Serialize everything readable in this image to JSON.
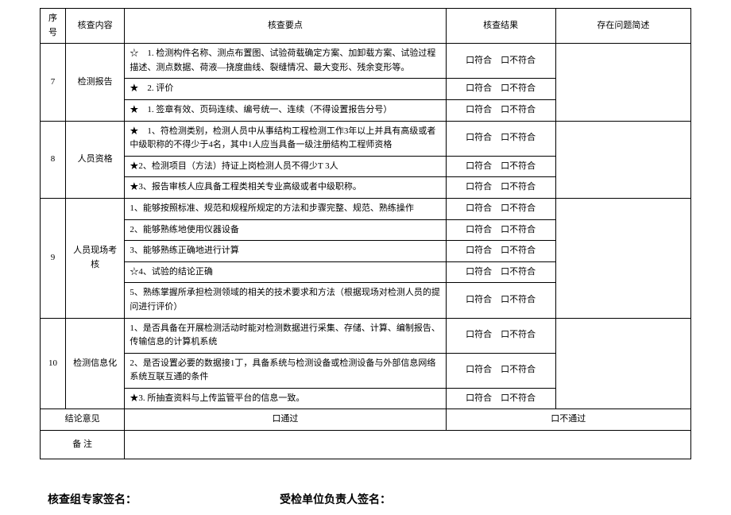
{
  "headers": {
    "seq": "序号",
    "content": "核查内容",
    "points": "核查要点",
    "result": "核查结果",
    "remark": "存在问题简述"
  },
  "result_text": "口符合　口不符合",
  "rows": [
    {
      "seq": "7",
      "content": "检测报告",
      "points": [
        "☆　1. 检测构件名称、测点布置图、试验荷载确定方案、加卸载方案、试验过程描述、测点数据、荷液—挠度曲线、裂缝情况、最大变形、残余变形等。",
        "★　2. 评价",
        "★　1. 签章有效、页码连续、编号统一、连续（不得设置报告分号）"
      ]
    },
    {
      "seq": "8",
      "content": "人员资格",
      "points": [
        "★　1、符检测类别，检测人员中从事结构工程检测工作3年以上并具有高级或者中级职称的不得少于4名，其中1人应当具备一级注册结构工程师资格",
        "★2、检测项目（方法）持证上岗检测人员不得少T 3人",
        "★3、报告审核人应具备工程类相关专业高级或者中级职称。"
      ]
    },
    {
      "seq": "9",
      "content": "人员现场考核",
      "points": [
        "1、能够按照标准、规范和规程所规定的方法和步骤完整、规范、熟练操作",
        "2、能够熟练地使用仪器设备",
        "3、能够熟练正确地进行计算",
        "☆4、试验的结论正确",
        "5、熟练掌握所承担检测领域的相关的技术要求和方法（根据现场对检测人员的提问进行评价）"
      ]
    },
    {
      "seq": "10",
      "content": "检测信息化",
      "points": [
        "1、是否具备在开展检测活动时能对检测数据进行采集、存储、计算、编制报告、传输信息的计算机系统",
        "2、是否设置必要的数据接1丁，具备系统与检测设备或检测设备与外部信息网络系统互联互通的条件",
        "★3. 所抽查资料与上传监管平台的信息一致。"
      ]
    }
  ],
  "conclusion": {
    "label": "结论意见",
    "pass": "口通过",
    "fail": "口不通过"
  },
  "remark_label": "备 注",
  "signatures": {
    "left": "核查组专家签名：",
    "right": "受检单位负责人签名："
  }
}
